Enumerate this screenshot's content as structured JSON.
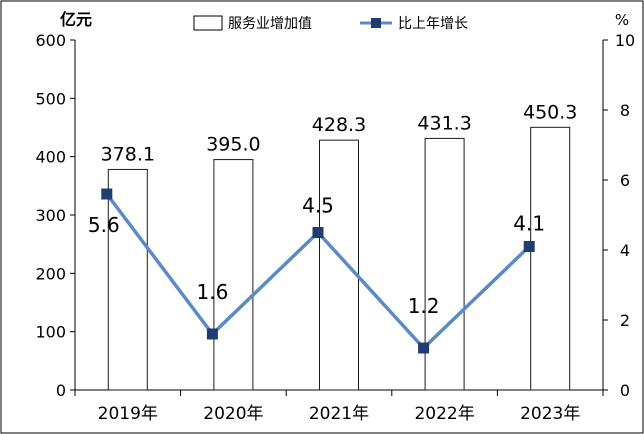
{
  "chart_data": {
    "type": "bar",
    "categories": [
      "2019年",
      "2020年",
      "2021年",
      "2022年",
      "2023年"
    ],
    "series": [
      {
        "name": "服务业增加值",
        "type": "bar",
        "axis": "left",
        "values": [
          378.1,
          395.0,
          428.3,
          431.3,
          450.3
        ],
        "labels": [
          "378.1",
          "395.0",
          "428.3",
          "431.3",
          "450.3"
        ]
      },
      {
        "name": "比上年增长",
        "type": "line",
        "axis": "right",
        "values": [
          5.6,
          1.6,
          4.5,
          1.2,
          4.1
        ],
        "labels": [
          "5.6",
          "1.6",
          "4.5",
          "1.2",
          "4.1"
        ]
      }
    ],
    "y_left": {
      "unit": "亿元",
      "range": [
        0,
        600
      ],
      "ticks": [
        0,
        100,
        200,
        300,
        400,
        500,
        600
      ]
    },
    "y_right": {
      "unit": "%",
      "range": [
        0,
        10
      ],
      "ticks": [
        0,
        2,
        4,
        6,
        8,
        10
      ]
    },
    "legend": "top",
    "grid": false,
    "colors": {
      "bar_fill": "#ffffff",
      "bar_stroke": "#1a1a1a",
      "line": "#5b8ac7",
      "marker": "#1f3d73",
      "axis": "#000000"
    }
  }
}
